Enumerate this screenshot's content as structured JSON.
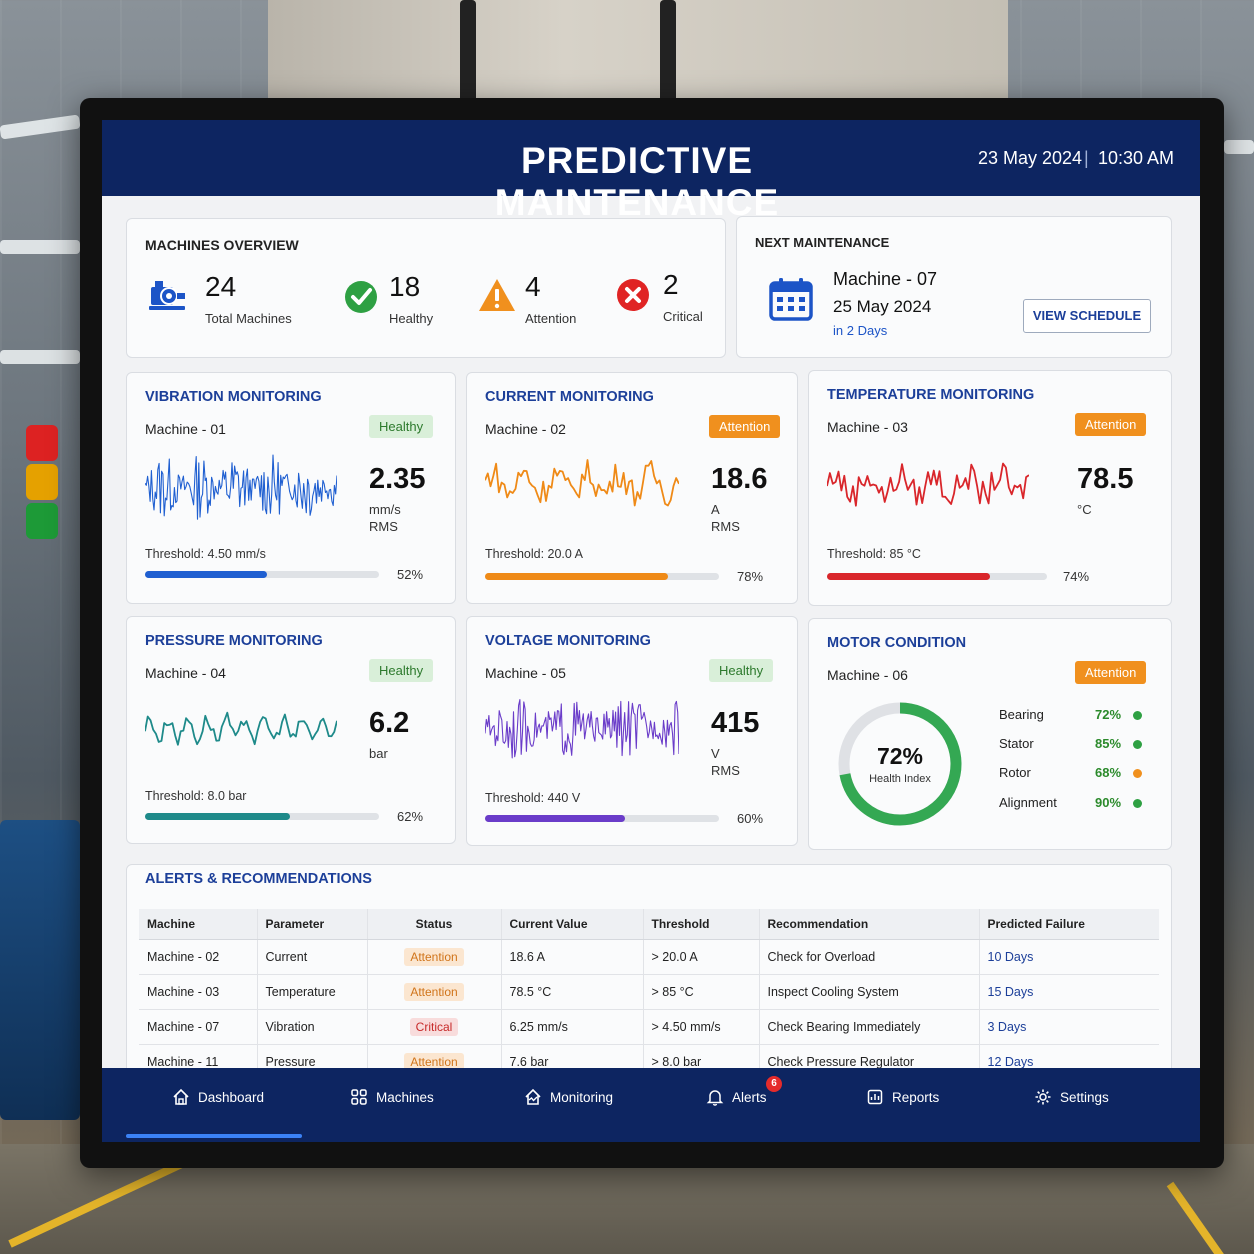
{
  "header": {
    "title": "PREDICTIVE MAINTENANCE",
    "date": "23 May 2024",
    "separator": "|",
    "time": "10:30 AM"
  },
  "overview": {
    "title": "MACHINES OVERVIEW",
    "items": [
      {
        "icon": "machine-icon",
        "value": "24",
        "label": "Total Machines",
        "color": "#1c54c7"
      },
      {
        "icon": "check-circle-icon",
        "value": "18",
        "label": "Healthy",
        "color": "#2ea043"
      },
      {
        "icon": "warning-triangle-icon",
        "value": "4",
        "label": "Attention",
        "color": "#f0901e"
      },
      {
        "icon": "x-circle-icon",
        "value": "2",
        "label": "Critical",
        "color": "#e02424"
      }
    ]
  },
  "next_maintenance": {
    "title": "NEXT MAINTENANCE",
    "machine": "Machine - 07",
    "date": "25 May 2024",
    "relative": "in 2 Days",
    "button": "VIEW SCHEDULE"
  },
  "monitors": [
    {
      "title": "VIBRATION MONITORING",
      "machine": "Machine - 01",
      "status": "Healthy",
      "value": "2.35",
      "unit_lines": [
        "mm/s",
        "RMS"
      ],
      "threshold": "Threshold: 4.50 mm/s",
      "percent": "52%",
      "fill": 0.52,
      "color": "#1f5fd1"
    },
    {
      "title": "CURRENT MONITORING",
      "machine": "Machine - 02",
      "status": "Attention",
      "value": "18.6",
      "unit_lines": [
        "A",
        "RMS"
      ],
      "threshold": "Threshold: 20.0 A",
      "percent": "78%",
      "fill": 0.78,
      "color": "#ef8a17"
    },
    {
      "title": "TEMPERATURE MONITORING",
      "machine": "Machine - 03",
      "status": "Attention",
      "value": "78.5",
      "unit_lines": [
        "°C"
      ],
      "threshold": "Threshold: 85 °C",
      "percent": "74%",
      "fill": 0.74,
      "color": "#d9262b"
    },
    {
      "title": "PRESSURE MONITORING",
      "machine": "Machine - 04",
      "status": "Healthy",
      "value": "6.2",
      "unit_lines": [
        "bar"
      ],
      "threshold": "Threshold: 8.0 bar",
      "percent": "62%",
      "fill": 0.62,
      "color": "#1e8a8a"
    },
    {
      "title": "VOLTAGE MONITORING",
      "machine": "Machine - 05",
      "status": "Healthy",
      "value": "415",
      "unit_lines": [
        "V",
        "RMS"
      ],
      "threshold": "Threshold: 440 V",
      "percent": "60%",
      "fill": 0.6,
      "color": "#6a3cc9"
    }
  ],
  "motor": {
    "title": "MOTOR CONDITION",
    "machine": "Machine - 06",
    "status": "Attention",
    "health_value": "72%",
    "health_fraction": 0.72,
    "health_label": "Health Index",
    "components": [
      {
        "name": "Bearing",
        "value": "72%",
        "dot": "#2ea043"
      },
      {
        "name": "Stator",
        "value": "85%",
        "dot": "#2ea043"
      },
      {
        "name": "Rotor",
        "value": "68%",
        "dot": "#f0901e"
      },
      {
        "name": "Alignment",
        "value": "90%",
        "dot": "#2ea043"
      }
    ]
  },
  "alerts": {
    "title": "ALERTS & RECOMMENDATIONS",
    "columns": [
      "Machine",
      "Parameter",
      "Status",
      "Current Value",
      "Threshold",
      "Recommendation",
      "Predicted Failure"
    ],
    "rows": [
      {
        "machine": "Machine - 02",
        "parameter": "Current",
        "status": "Attention",
        "current": "18.6 A",
        "threshold": "> 20.0 A",
        "recommendation": "Check for Overload",
        "failure": "10 Days"
      },
      {
        "machine": "Machine - 03",
        "parameter": "Temperature",
        "status": "Attention",
        "current": "78.5 °C",
        "threshold": "> 85 °C",
        "recommendation": "Inspect Cooling System",
        "failure": "15 Days"
      },
      {
        "machine": "Machine - 07",
        "parameter": "Vibration",
        "status": "Critical",
        "current": "6.25 mm/s",
        "threshold": "> 4.50 mm/s",
        "recommendation": "Check Bearing Immediately",
        "failure": "3 Days"
      },
      {
        "machine": "Machine - 11",
        "parameter": "Pressure",
        "status": "Attention",
        "current": "7.6 bar",
        "threshold": "> 8.0 bar",
        "recommendation": "Check Pressure Regulator",
        "failure": "12 Days"
      }
    ]
  },
  "nav": {
    "items": [
      {
        "label": "Dashboard",
        "icon": "home-icon"
      },
      {
        "label": "Machines",
        "icon": "grid-icon"
      },
      {
        "label": "Monitoring",
        "icon": "monitoring-icon"
      },
      {
        "label": "Alerts",
        "icon": "bell-icon",
        "badge": "6"
      },
      {
        "label": "Reports",
        "icon": "reports-icon"
      },
      {
        "label": "Settings",
        "icon": "gear-icon"
      }
    ],
    "active": "Dashboard"
  }
}
